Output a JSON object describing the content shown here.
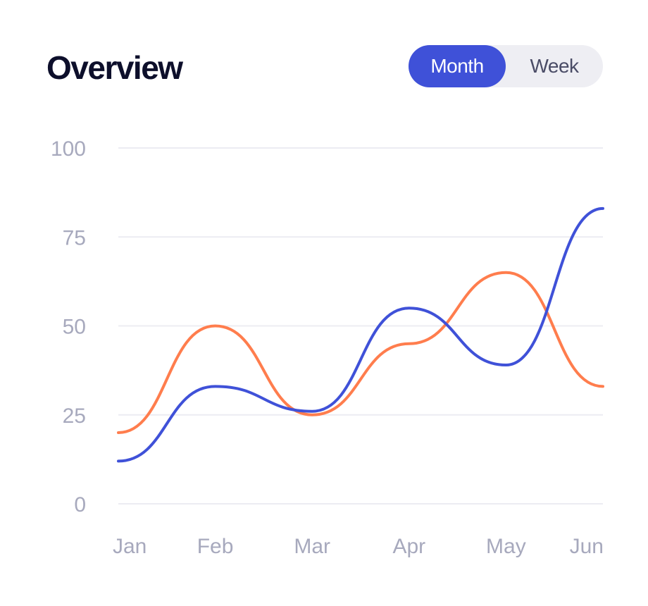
{
  "header": {
    "title": "Overview",
    "toggle": {
      "options": [
        "Month",
        "Week"
      ],
      "selected": "Month"
    }
  },
  "colors": {
    "accent": "#3f51d8",
    "series_blue": "#3f51d8",
    "series_orange": "#ff7d4d",
    "grid": "#ececf2",
    "tick_text": "#a7a9bd"
  },
  "chart_data": {
    "type": "line",
    "smooth": true,
    "x": [
      "Jan",
      "Feb",
      "Mar",
      "Apr",
      "May",
      "Jun"
    ],
    "series": [
      {
        "values": [
          20,
          50,
          25,
          45,
          65,
          33
        ],
        "color": "#ff7d4d"
      },
      {
        "values": [
          12,
          33,
          26,
          55,
          39,
          83
        ],
        "color": "#3f51d8"
      }
    ],
    "ylim": [
      0,
      100
    ],
    "yticks": [
      0,
      25,
      50,
      75,
      100
    ],
    "grid": true,
    "legend": false
  }
}
